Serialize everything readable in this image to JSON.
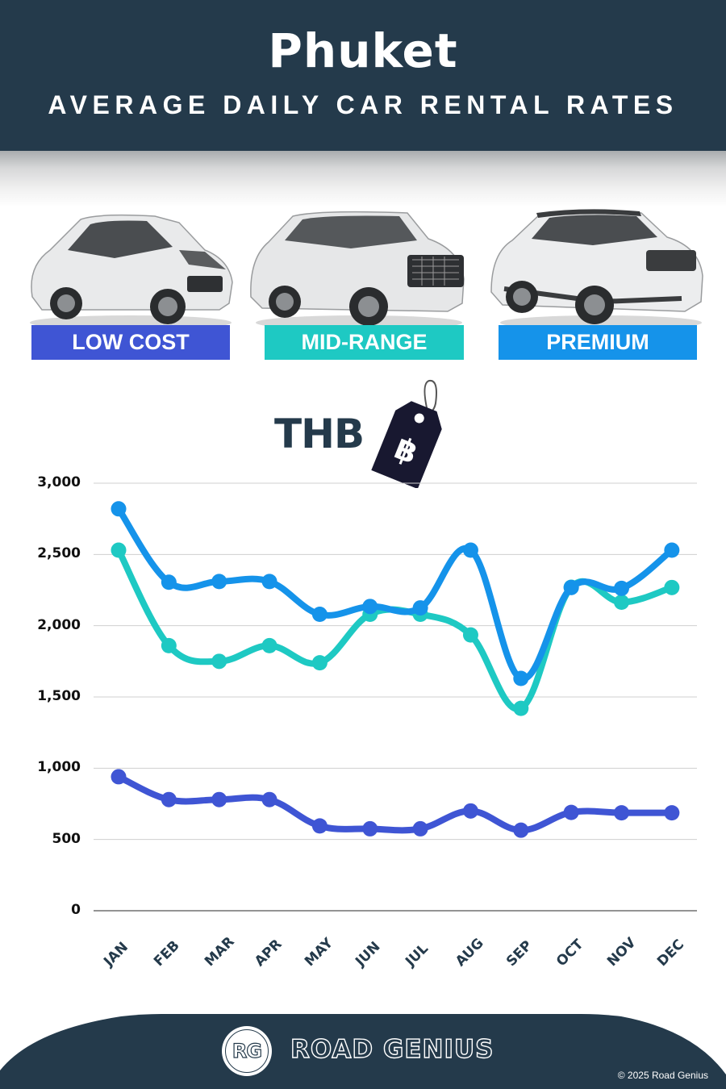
{
  "header": {
    "title": "Phuket",
    "subtitle": "AVERAGE DAILY CAR RENTAL RATES"
  },
  "categories": [
    {
      "label": "LOW COST",
      "color": "#3f55d4",
      "icon": "hatchback-car-icon"
    },
    {
      "label": "MID-RANGE",
      "color": "#1ec9c3",
      "icon": "suv-car-icon"
    },
    {
      "label": "PREMIUM",
      "color": "#1593ea",
      "icon": "luxury-suv-car-icon"
    }
  ],
  "currency": {
    "label": "THB",
    "icon": "baht-price-tag-icon",
    "symbol": "฿"
  },
  "chart_data": {
    "type": "line",
    "title": "Phuket Average Daily Car Rental Rates",
    "xlabel": "",
    "ylabel": "THB",
    "ylim": [
      0,
      3000
    ],
    "yticks": [
      0,
      500,
      1000,
      1500,
      2000,
      2500,
      3000
    ],
    "ytick_labels": [
      "0",
      "500",
      "1,000",
      "1,500",
      "2,000",
      "2,500",
      "3,000"
    ],
    "grid": true,
    "legend_position": "top (category badges)",
    "categories": [
      "JAN",
      "FEB",
      "MAR",
      "APR",
      "MAY",
      "JUN",
      "JUL",
      "AUG",
      "SEP",
      "OCT",
      "NOV",
      "DEC"
    ],
    "series": [
      {
        "name": "Low Cost",
        "color": "#3f55d4",
        "values": [
          940,
          780,
          780,
          780,
          595,
          575,
          575,
          700,
          565,
          690,
          687,
          687
        ]
      },
      {
        "name": "Mid-Range",
        "color": "#1ec9c3",
        "values": [
          2530,
          1860,
          1750,
          1860,
          1740,
          2080,
          2080,
          1935,
          1420,
          2270,
          2165,
          2268
        ]
      },
      {
        "name": "Premium",
        "color": "#1593ea",
        "values": [
          2820,
          2305,
          2310,
          2310,
          2080,
          2135,
          2125,
          2530,
          1630,
          2268,
          2262,
          2530
        ]
      }
    ]
  },
  "footer": {
    "brand": "ROAD GENIUS",
    "logo_text": "RG",
    "copyright": "© 2025 Road Genius"
  }
}
